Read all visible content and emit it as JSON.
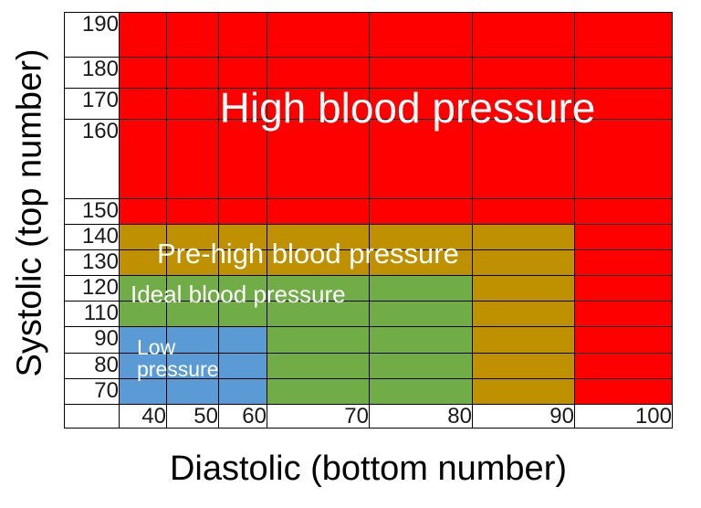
{
  "chart_data": {
    "type": "heatmap",
    "title": "",
    "xlabel": "Diastolic (bottom number)",
    "ylabel": "Systolic (top number)",
    "x_ticks": [
      "40",
      "50",
      "60",
      "70",
      "80",
      "90",
      "100"
    ],
    "y_ticks": [
      "190",
      "180",
      "170",
      "160",
      "150",
      "140",
      "130",
      "120",
      "110",
      "90",
      "80",
      "70"
    ],
    "grid": "off-outside, black cell gridlines inside",
    "legend_position": "labels drawn inside zones",
    "zones": {
      "high": {
        "label": "High blood pressure",
        "color": "#FF0000"
      },
      "prehigh": {
        "label": "Pre-high blood pressure",
        "color": "#BF9000"
      },
      "ideal": {
        "label": "Ideal blood pressure",
        "color": "#70AD47"
      },
      "low": {
        "label": "Low pressure",
        "color": "#5B9BD5"
      }
    },
    "grid_rows": [
      {
        "tick": "190",
        "cells": [
          "high",
          "high",
          "high",
          "high",
          "high",
          "high",
          "high"
        ]
      },
      {
        "tick": "180",
        "cells": [
          "high",
          "high",
          "high",
          "high",
          "high",
          "high",
          "high"
        ]
      },
      {
        "tick": "170",
        "cells": [
          "high",
          "high",
          "high",
          "high",
          "high",
          "high",
          "high"
        ]
      },
      {
        "tick": "160",
        "cells": [
          "high",
          "high",
          "high",
          "high",
          "high",
          "high",
          "high"
        ]
      },
      {
        "tick": "150",
        "cells": [
          "high",
          "high",
          "high",
          "high",
          "high",
          "high",
          "high"
        ]
      },
      {
        "tick": "140",
        "cells": [
          "prehigh",
          "prehigh",
          "prehigh",
          "prehigh",
          "prehigh",
          "prehigh",
          "high"
        ]
      },
      {
        "tick": "130",
        "cells": [
          "prehigh",
          "prehigh",
          "prehigh",
          "prehigh",
          "prehigh",
          "prehigh",
          "high"
        ]
      },
      {
        "tick": "120",
        "cells": [
          "ideal",
          "ideal",
          "ideal",
          "ideal",
          "ideal",
          "prehigh",
          "high"
        ]
      },
      {
        "tick": "110",
        "cells": [
          "ideal",
          "ideal",
          "ideal",
          "ideal",
          "ideal",
          "prehigh",
          "high"
        ]
      },
      {
        "tick": "90",
        "cells": [
          "low",
          "low",
          "low",
          "ideal",
          "ideal",
          "prehigh",
          "high"
        ]
      },
      {
        "tick": "80",
        "cells": [
          "low",
          "low",
          "low",
          "ideal",
          "ideal",
          "prehigh",
          "high"
        ]
      },
      {
        "tick": "70",
        "cells": [
          "low",
          "low",
          "low",
          "ideal",
          "ideal",
          "prehigh",
          "high"
        ]
      }
    ]
  }
}
